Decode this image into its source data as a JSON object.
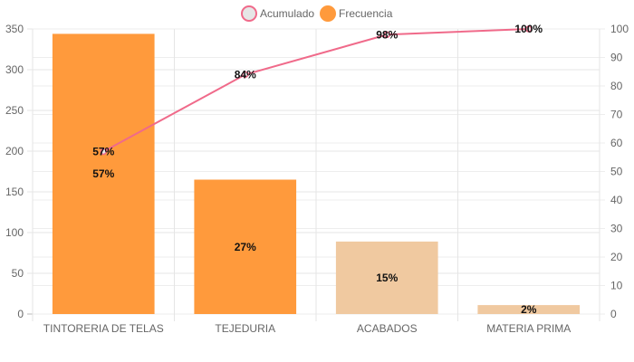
{
  "chart_data": {
    "type": "bar",
    "categories": [
      "TINTORERIA DE TELAS",
      "TEJEDURIA",
      "ACABADOS",
      "MATERIA PRIMA"
    ],
    "series": [
      {
        "name": "Frecuencia",
        "type": "bar",
        "axis": "left",
        "values": [
          344,
          165,
          89,
          11
        ],
        "colors": [
          "#ff9a3c",
          "#ff9a3c",
          "#f0c9a0",
          "#f0c9a0"
        ],
        "labels": [
          "57%",
          "27%",
          "15%",
          "2%"
        ]
      },
      {
        "name": "Acumulado",
        "type": "line",
        "axis": "right",
        "values": [
          57,
          84,
          98,
          100
        ],
        "color": "#f06a8a",
        "labels": [
          "57%",
          "84%",
          "98%",
          "100%"
        ]
      }
    ],
    "ylim_left": [
      0,
      350
    ],
    "yticks_left": [
      0,
      50,
      100,
      150,
      200,
      250,
      300,
      350
    ],
    "ylim_right": [
      0,
      100
    ],
    "yticks_right": [
      0,
      10,
      20,
      30,
      40,
      50,
      60,
      70,
      80,
      90,
      100
    ],
    "grid": true,
    "legend": {
      "position": "top-center",
      "items": [
        {
          "label": "Acumulado",
          "fill": "#e6e6e6",
          "stroke": "#f06a8a"
        },
        {
          "label": "Frecuencia",
          "fill": "#ff9a3c",
          "stroke": "#ff9a3c"
        }
      ]
    },
    "title": "",
    "xlabel": "",
    "ylabel": ""
  }
}
